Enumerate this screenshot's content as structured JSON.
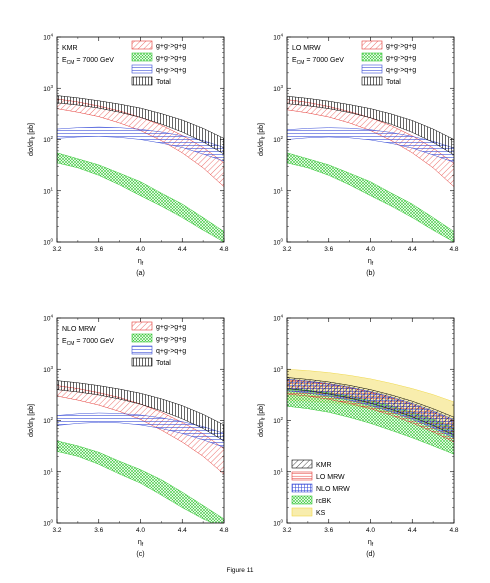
{
  "figure": {
    "caption": "Figure 11"
  },
  "chart_data": [
    {
      "type": "area",
      "panel": "(a)",
      "annotation": [
        "KMR",
        "E",
        "CM",
        " = 7000 GeV"
      ],
      "xlabel": "η",
      "xlabel_sub": "f",
      "ylabel": "dσ/dη",
      "ylabel_sub": "f",
      "ylabel_unit": " [pb]",
      "xlim": [
        3.2,
        4.8
      ],
      "ylim": [
        1,
        10000
      ],
      "yscale": "log",
      "xticks": [
        "3.2",
        "3.6",
        "4.0",
        "4.4",
        "4.8"
      ],
      "yticks": [
        {
          "base": "10",
          "exp": "0"
        },
        {
          "base": "10",
          "exp": "1"
        },
        {
          "base": "10",
          "exp": "2"
        },
        {
          "base": "10",
          "exp": "3"
        },
        {
          "base": "10",
          "exp": "4"
        }
      ],
      "legend_position": "top-right",
      "x": [
        3.2,
        3.4,
        3.6,
        3.8,
        4.0,
        4.2,
        4.4,
        4.6,
        4.8
      ],
      "series": [
        {
          "name": "g+g->g+g",
          "color": "#e53935",
          "style": "diag",
          "low": [
            400,
            340,
            280,
            210,
            150,
            95,
            55,
            28,
            12
          ],
          "high": [
            620,
            540,
            450,
            360,
            270,
            190,
            120,
            70,
            35
          ]
        },
        {
          "name": "g+g->g+g",
          "color": "#37c837",
          "style": "cross",
          "low": [
            35,
            28,
            20,
            13,
            8,
            5,
            3,
            1.7,
            1.0
          ],
          "high": [
            55,
            42,
            32,
            22,
            15,
            9,
            5.5,
            3,
            1.6
          ]
        },
        {
          "name": "q+g->q+g",
          "color": "#3b4fd8",
          "style": "horiz",
          "low": [
            105,
            112,
            115,
            110,
            100,
            85,
            70,
            52,
            38
          ],
          "high": [
            160,
            170,
            175,
            170,
            158,
            140,
            118,
            95,
            70
          ]
        },
        {
          "name": "Total",
          "color": "#000000",
          "style": "vert",
          "low": [
            520,
            470,
            410,
            340,
            270,
            200,
            140,
            90,
            52
          ],
          "high": [
            720,
            650,
            570,
            490,
            410,
            320,
            240,
            165,
            105
          ]
        }
      ]
    },
    {
      "type": "area",
      "panel": "(b)",
      "annotation": [
        "LO MRW",
        "E",
        "CM",
        " = 7000 GeV"
      ],
      "xlabel": "η",
      "xlabel_sub": "f",
      "ylabel": "dσ/dη",
      "ylabel_sub": "f",
      "ylabel_unit": " [pb]",
      "xlim": [
        3.2,
        4.8
      ],
      "ylim": [
        1,
        10000
      ],
      "yscale": "log",
      "xticks": [
        "3.2",
        "3.6",
        "4.0",
        "4.4",
        "4.8"
      ],
      "yticks": [
        {
          "base": "10",
          "exp": "0"
        },
        {
          "base": "10",
          "exp": "1"
        },
        {
          "base": "10",
          "exp": "2"
        },
        {
          "base": "10",
          "exp": "3"
        },
        {
          "base": "10",
          "exp": "4"
        }
      ],
      "legend_position": "top-right",
      "x": [
        3.2,
        3.4,
        3.6,
        3.8,
        4.0,
        4.2,
        4.4,
        4.6,
        4.8
      ],
      "series": [
        {
          "name": "g+g->g+g",
          "color": "#e53935",
          "style": "diag",
          "low": [
            380,
            330,
            275,
            210,
            150,
            95,
            55,
            28,
            12
          ],
          "high": [
            600,
            530,
            440,
            350,
            265,
            185,
            118,
            68,
            34
          ]
        },
        {
          "name": "g+g->g+g",
          "color": "#37c837",
          "style": "cross",
          "low": [
            35,
            28,
            20,
            13,
            8,
            5,
            3,
            1.7,
            1.0
          ],
          "high": [
            55,
            42,
            32,
            22,
            15,
            9,
            5.5,
            3,
            1.6
          ]
        },
        {
          "name": "q+g->q+g",
          "color": "#3b4fd8",
          "style": "horiz",
          "low": [
            100,
            108,
            112,
            108,
            98,
            84,
            68,
            50,
            36
          ],
          "high": [
            155,
            165,
            170,
            166,
            155,
            137,
            115,
            92,
            68
          ]
        },
        {
          "name": "Total",
          "color": "#000000",
          "style": "vert",
          "low": [
            500,
            455,
            400,
            335,
            265,
            198,
            138,
            88,
            50
          ],
          "high": [
            700,
            635,
            560,
            480,
            400,
            315,
            235,
            160,
            100
          ]
        }
      ]
    },
    {
      "type": "area",
      "panel": "(c)",
      "annotation": [
        "NLO MRW",
        "E",
        "CM",
        " = 7000 GeV"
      ],
      "xlabel": "η",
      "xlabel_sub": "f",
      "ylabel": "dσ/dη",
      "ylabel_sub": "f",
      "ylabel_unit": " [pb]",
      "xlim": [
        3.2,
        4.8
      ],
      "ylim": [
        1,
        10000
      ],
      "yscale": "log",
      "xticks": [
        "3.2",
        "3.6",
        "4.0",
        "4.4",
        "4.8"
      ],
      "yticks": [
        {
          "base": "10",
          "exp": "0"
        },
        {
          "base": "10",
          "exp": "1"
        },
        {
          "base": "10",
          "exp": "2"
        },
        {
          "base": "10",
          "exp": "3"
        },
        {
          "base": "10",
          "exp": "4"
        }
      ],
      "legend_position": "top-right",
      "x": [
        3.2,
        3.4,
        3.6,
        3.8,
        4.0,
        4.2,
        4.4,
        4.6,
        4.8
      ],
      "series": [
        {
          "name": "g+g->g+g",
          "color": "#e53935",
          "style": "diag",
          "low": [
            300,
            250,
            200,
            150,
            105,
            65,
            38,
            20,
            9
          ],
          "high": [
            480,
            420,
            350,
            280,
            210,
            145,
            92,
            55,
            28
          ]
        },
        {
          "name": "g+g->g+g",
          "color": "#37c837",
          "style": "cross",
          "low": [
            25,
            20,
            14,
            9,
            6,
            3.5,
            2,
            1.2,
            0.8
          ],
          "high": [
            40,
            32,
            24,
            16,
            11,
            7,
            4,
            2.2,
            1.2
          ]
        },
        {
          "name": "q+g->q+g",
          "color": "#3b4fd8",
          "style": "horiz",
          "low": [
            80,
            88,
            92,
            90,
            82,
            70,
            56,
            42,
            30
          ],
          "high": [
            125,
            135,
            140,
            137,
            128,
            113,
            95,
            76,
            56
          ]
        },
        {
          "name": "Total",
          "color": "#000000",
          "style": "vert",
          "low": [
            400,
            360,
            315,
            262,
            208,
            155,
            108,
            70,
            40
          ],
          "high": [
            600,
            545,
            480,
            410,
            340,
            265,
            195,
            132,
            82
          ]
        }
      ]
    },
    {
      "type": "area",
      "panel": "(d)",
      "annotation": [],
      "xlabel": "η",
      "xlabel_sub": "f",
      "ylabel": "dσ/dη",
      "ylabel_sub": "f",
      "ylabel_unit": " [pb]",
      "xlim": [
        3.2,
        4.8
      ],
      "ylim": [
        1,
        10000
      ],
      "yscale": "log",
      "xticks": [
        "3.2",
        "3.6",
        "4.0",
        "4.4",
        "4.8"
      ],
      "yticks": [
        {
          "base": "10",
          "exp": "0"
        },
        {
          "base": "10",
          "exp": "1"
        },
        {
          "base": "10",
          "exp": "2"
        },
        {
          "base": "10",
          "exp": "3"
        },
        {
          "base": "10",
          "exp": "4"
        }
      ],
      "legend_position": "bottom-left",
      "x": [
        3.2,
        3.4,
        3.6,
        3.8,
        4.0,
        4.2,
        4.4,
        4.6,
        4.8
      ],
      "series": [
        {
          "name": "KS",
          "color": "#f0d84a",
          "style": "fill",
          "low": [
            250,
            240,
            225,
            200,
            170,
            140,
            110,
            82,
            58
          ],
          "high": [
            1000,
            940,
            860,
            760,
            650,
            530,
            420,
            320,
            230
          ]
        },
        {
          "name": "rcBK",
          "color": "#37c837",
          "style": "cross",
          "low": [
            190,
            170,
            145,
            115,
            88,
            64,
            46,
            32,
            22
          ],
          "high": [
            420,
            390,
            350,
            300,
            245,
            192,
            145,
            105,
            72
          ]
        },
        {
          "name": "LO MRW",
          "color": "#e53935",
          "style": "hlines",
          "low": [
            330,
            300,
            260,
            215,
            170,
            127,
            90,
            60,
            38
          ],
          "high": [
            620,
            575,
            510,
            435,
            355,
            275,
            205,
            145,
            98
          ]
        },
        {
          "name": "NLO MRW",
          "color": "#3b4fd8",
          "style": "grid",
          "low": [
            380,
            345,
            300,
            248,
            196,
            148,
            106,
            72,
            46
          ],
          "high": [
            640,
            590,
            525,
            448,
            368,
            288,
            216,
            154,
            104
          ]
        },
        {
          "name": "KMR",
          "color": "#000000",
          "style": "diag",
          "low": [
            420,
            380,
            330,
            275,
            218,
            165,
            118,
            80,
            52
          ],
          "high": [
            690,
            635,
            565,
            485,
            400,
            315,
            238,
            170,
            116
          ]
        }
      ],
      "legend_order": [
        "KMR",
        "LO MRW",
        "NLO MRW",
        "rcBK",
        "KS"
      ]
    }
  ]
}
